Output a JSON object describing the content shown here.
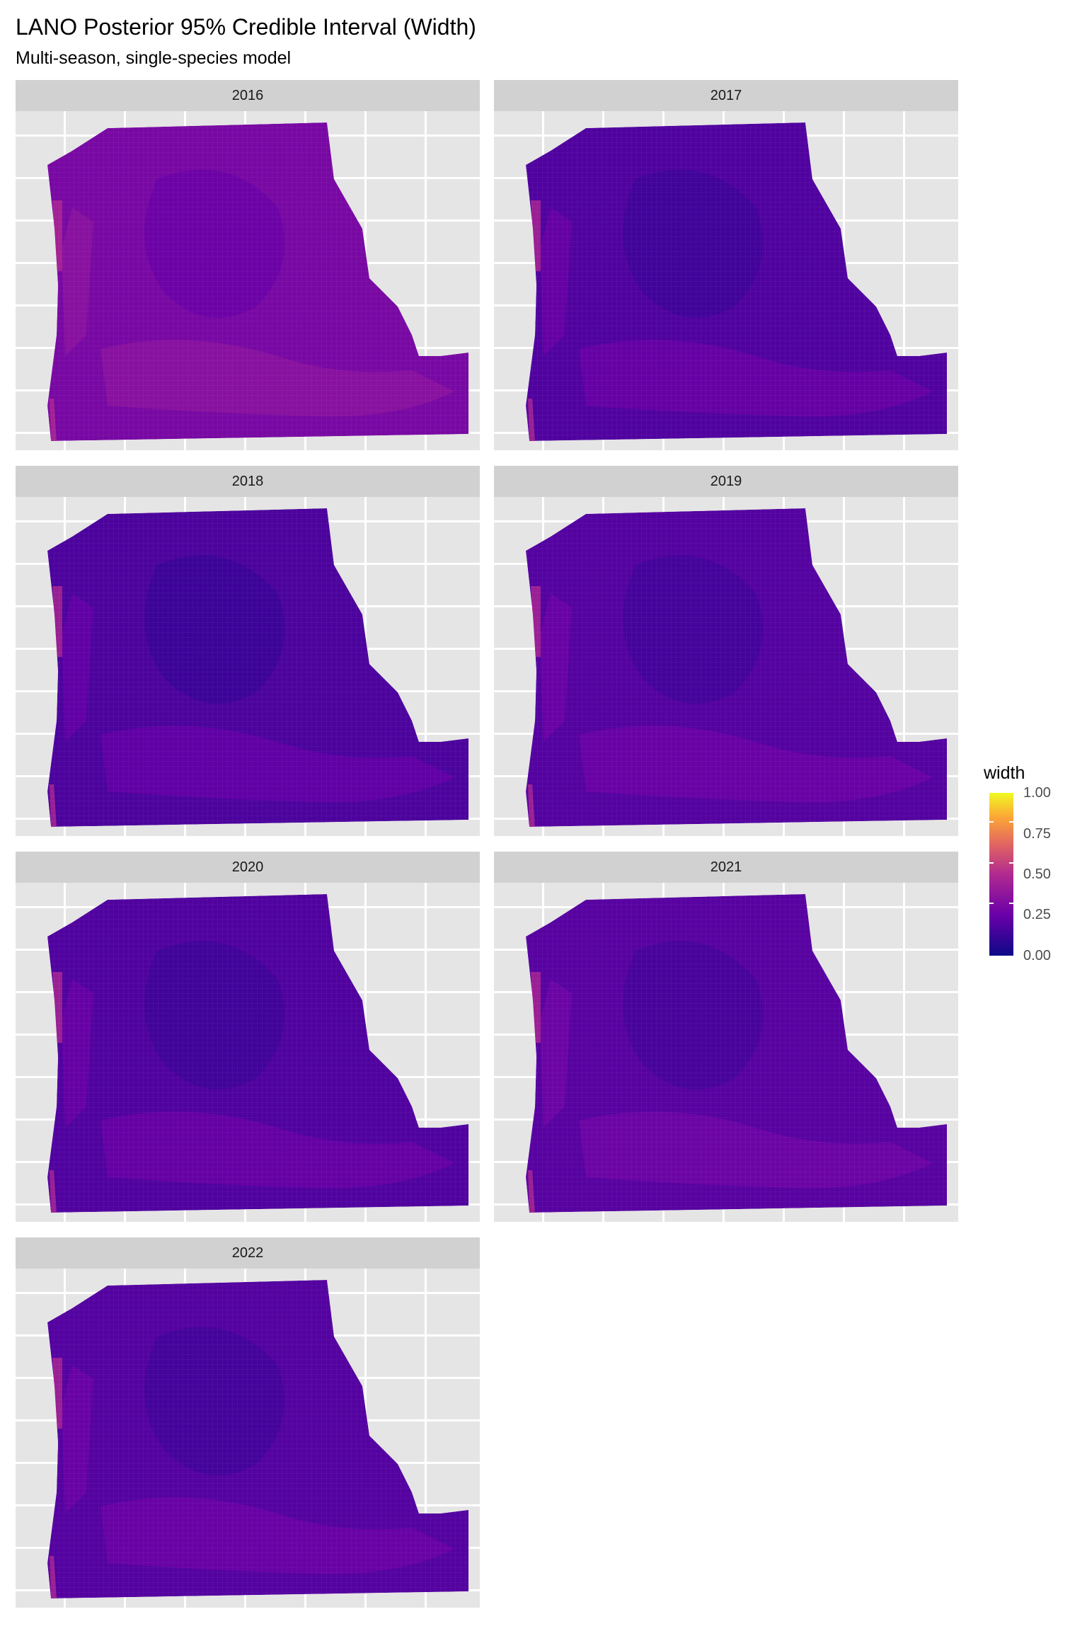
{
  "chart_data": {
    "type": "heatmap",
    "title": "LANO Posterior 95% Credible Interval (Width)",
    "subtitle": "Multi-season, single-species model",
    "facets": [
      "2016",
      "2017",
      "2018",
      "2019",
      "2020",
      "2021",
      "2022"
    ],
    "fill_label": "width",
    "fill_limits": [
      0,
      1
    ],
    "legend_ticks": [
      "1.00",
      "0.75",
      "0.50",
      "0.25",
      "0.00"
    ],
    "palette": [
      "#0d0887",
      "#6a00a8",
      "#b12a90",
      "#e16462",
      "#fca636",
      "#f0f921"
    ],
    "facet_mean_width": [
      0.3,
      0.18,
      0.17,
      0.19,
      0.18,
      0.2,
      0.19
    ],
    "grid": true,
    "legend_position": "right"
  }
}
